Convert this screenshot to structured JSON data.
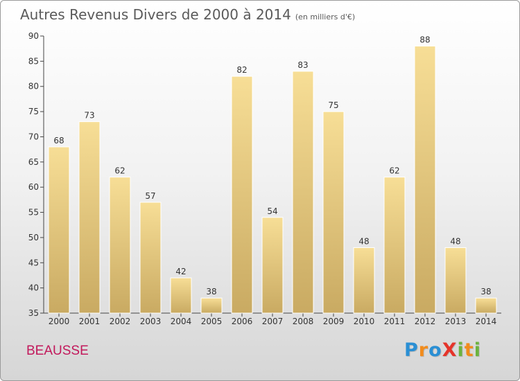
{
  "title": "Autres Revenus Divers de 2000 à 2014",
  "subtitle": "(en milliers d'€)",
  "commune": "BEAUSSE",
  "logo": {
    "text": "ProXiti",
    "letters": [
      {
        "ch": "P",
        "color": "#2a8fd4"
      },
      {
        "ch": "r",
        "color": "#f28c1c"
      },
      {
        "ch": "o",
        "color": "#2a8fd4"
      },
      {
        "ch": "X",
        "color": "#e5342a"
      },
      {
        "ch": "i",
        "color": "#6cb33f"
      },
      {
        "ch": "t",
        "color": "#f28c1c"
      },
      {
        "ch": "i",
        "color": "#6cb33f"
      }
    ]
  },
  "chart_data": {
    "type": "bar",
    "categories": [
      "2000",
      "2001",
      "2002",
      "2003",
      "2004",
      "2005",
      "2006",
      "2007",
      "2008",
      "2009",
      "2010",
      "2011",
      "2012",
      "2013",
      "2014"
    ],
    "values": [
      68,
      73,
      62,
      57,
      42,
      38,
      82,
      54,
      83,
      75,
      48,
      62,
      88,
      48,
      38
    ],
    "ylim": [
      35,
      90
    ],
    "yticks": [
      35,
      40,
      45,
      50,
      55,
      60,
      65,
      70,
      75,
      80,
      85,
      90
    ],
    "grid": false,
    "data_labels": true,
    "bar_color_top": "#f7de96",
    "bar_color_bottom": "#c9aa62"
  }
}
